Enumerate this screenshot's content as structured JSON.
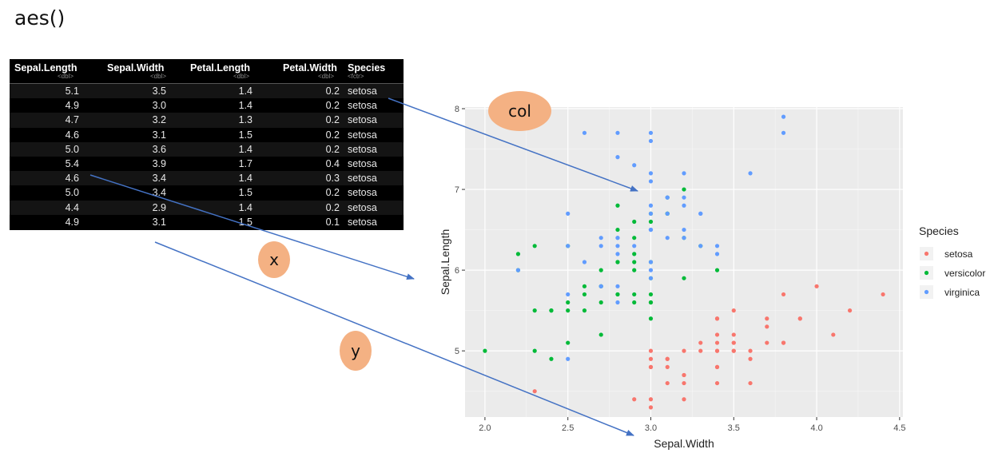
{
  "title": "aes()",
  "table": {
    "columns": [
      {
        "name": "Sepal.Length",
        "type": "<dbl>"
      },
      {
        "name": "Sepal.Width",
        "type": "<dbl>"
      },
      {
        "name": "Petal.Length",
        "type": "<dbl>"
      },
      {
        "name": "Petal.Width",
        "type": "<dbl>"
      },
      {
        "name": "Species",
        "type": "<fctr>"
      }
    ],
    "rows": [
      [
        "5.1",
        "3.5",
        "1.4",
        "0.2",
        "setosa"
      ],
      [
        "4.9",
        "3.0",
        "1.4",
        "0.2",
        "setosa"
      ],
      [
        "4.7",
        "3.2",
        "1.3",
        "0.2",
        "setosa"
      ],
      [
        "4.6",
        "3.1",
        "1.5",
        "0.2",
        "setosa"
      ],
      [
        "5.0",
        "3.6",
        "1.4",
        "0.2",
        "setosa"
      ],
      [
        "5.4",
        "3.9",
        "1.7",
        "0.4",
        "setosa"
      ],
      [
        "4.6",
        "3.4",
        "1.4",
        "0.3",
        "setosa"
      ],
      [
        "5.0",
        "3.4",
        "1.5",
        "0.2",
        "setosa"
      ],
      [
        "4.4",
        "2.9",
        "1.4",
        "0.2",
        "setosa"
      ],
      [
        "4.9",
        "3.1",
        "1.5",
        "0.1",
        "setosa"
      ]
    ]
  },
  "bubbles": {
    "col": "col",
    "x": "x",
    "y": "y"
  },
  "colors": {
    "setosa": "#f8766d",
    "versicolor": "#00ba38",
    "virginica": "#619cff",
    "arrow": "#4472c4",
    "bubble": "#f4b183",
    "panel": "#ebebeb"
  },
  "chart_data": {
    "type": "scatter",
    "xlabel": "Sepal.Width",
    "ylabel": "Sepal.Length",
    "xlim": [
      1.88,
      4.52
    ],
    "ylim": [
      4.18,
      8.02
    ],
    "xticks": [
      2.0,
      2.5,
      3.0,
      3.5,
      4.0,
      4.5
    ],
    "xtick_labels": [
      "2.0",
      "2.5",
      "3.0",
      "3.5",
      "4.0",
      "4.5"
    ],
    "yticks": [
      5,
      6,
      7,
      8
    ],
    "ytick_labels": [
      "5",
      "6",
      "7",
      "8"
    ],
    "grid": true,
    "legend": {
      "title": "Species",
      "position": "right"
    },
    "series": [
      {
        "name": "setosa",
        "points": [
          [
            3.5,
            5.1
          ],
          [
            3.0,
            4.9
          ],
          [
            3.2,
            4.7
          ],
          [
            3.1,
            4.6
          ],
          [
            3.6,
            5.0
          ],
          [
            3.9,
            5.4
          ],
          [
            3.4,
            4.6
          ],
          [
            3.4,
            5.0
          ],
          [
            2.9,
            4.4
          ],
          [
            3.1,
            4.9
          ],
          [
            3.7,
            5.4
          ],
          [
            3.4,
            4.8
          ],
          [
            3.0,
            4.8
          ],
          [
            3.0,
            4.3
          ],
          [
            4.0,
            5.8
          ],
          [
            4.4,
            5.7
          ],
          [
            3.9,
            5.4
          ],
          [
            3.5,
            5.1
          ],
          [
            3.8,
            5.7
          ],
          [
            3.8,
            5.1
          ],
          [
            3.4,
            5.4
          ],
          [
            3.7,
            5.1
          ],
          [
            3.6,
            4.6
          ],
          [
            3.3,
            5.1
          ],
          [
            3.4,
            4.8
          ],
          [
            3.0,
            5.0
          ],
          [
            3.4,
            5.0
          ],
          [
            3.5,
            5.2
          ],
          [
            3.4,
            5.2
          ],
          [
            3.2,
            4.7
          ],
          [
            3.1,
            4.8
          ],
          [
            3.4,
            5.4
          ],
          [
            4.1,
            5.2
          ],
          [
            4.2,
            5.5
          ],
          [
            3.1,
            4.9
          ],
          [
            3.2,
            5.0
          ],
          [
            3.5,
            5.5
          ],
          [
            3.6,
            4.9
          ],
          [
            3.0,
            4.4
          ],
          [
            3.4,
            5.1
          ],
          [
            3.5,
            5.0
          ],
          [
            2.3,
            4.5
          ],
          [
            3.2,
            4.4
          ],
          [
            3.5,
            5.0
          ],
          [
            3.8,
            5.1
          ],
          [
            3.0,
            4.8
          ],
          [
            3.8,
            5.1
          ],
          [
            3.2,
            4.6
          ],
          [
            3.7,
            5.3
          ],
          [
            3.3,
            5.0
          ]
        ]
      },
      {
        "name": "versicolor",
        "points": [
          [
            3.2,
            7.0
          ],
          [
            3.2,
            6.4
          ],
          [
            3.1,
            6.9
          ],
          [
            2.3,
            5.5
          ],
          [
            2.8,
            6.5
          ],
          [
            2.8,
            5.7
          ],
          [
            3.3,
            6.3
          ],
          [
            2.4,
            4.9
          ],
          [
            2.9,
            6.6
          ],
          [
            2.7,
            5.2
          ],
          [
            2.0,
            5.0
          ],
          [
            3.0,
            5.9
          ],
          [
            2.2,
            6.0
          ],
          [
            2.9,
            6.1
          ],
          [
            2.9,
            5.6
          ],
          [
            3.1,
            6.7
          ],
          [
            3.0,
            5.6
          ],
          [
            2.7,
            5.8
          ],
          [
            2.2,
            6.2
          ],
          [
            2.5,
            5.6
          ],
          [
            3.2,
            5.9
          ],
          [
            2.8,
            6.1
          ],
          [
            2.5,
            6.3
          ],
          [
            2.8,
            6.1
          ],
          [
            2.9,
            6.4
          ],
          [
            3.0,
            6.6
          ],
          [
            2.8,
            6.8
          ],
          [
            3.0,
            6.7
          ],
          [
            2.9,
            6.0
          ],
          [
            2.6,
            5.7
          ],
          [
            2.4,
            5.5
          ],
          [
            2.4,
            5.5
          ],
          [
            2.7,
            5.8
          ],
          [
            2.7,
            6.0
          ],
          [
            3.0,
            5.4
          ],
          [
            3.4,
            6.0
          ],
          [
            3.1,
            6.7
          ],
          [
            2.3,
            6.3
          ],
          [
            3.0,
            5.6
          ],
          [
            2.5,
            5.5
          ],
          [
            2.6,
            5.5
          ],
          [
            3.0,
            6.1
          ],
          [
            2.6,
            5.8
          ],
          [
            2.3,
            5.0
          ],
          [
            2.7,
            5.6
          ],
          [
            3.0,
            5.7
          ],
          [
            2.9,
            5.7
          ],
          [
            2.9,
            6.2
          ],
          [
            2.5,
            5.1
          ],
          [
            2.8,
            5.7
          ]
        ]
      },
      {
        "name": "virginica",
        "points": [
          [
            3.3,
            6.3
          ],
          [
            2.7,
            5.8
          ],
          [
            3.0,
            7.1
          ],
          [
            2.9,
            6.3
          ],
          [
            3.0,
            6.5
          ],
          [
            3.0,
            7.6
          ],
          [
            2.5,
            4.9
          ],
          [
            2.9,
            7.3
          ],
          [
            2.5,
            6.7
          ],
          [
            3.6,
            7.2
          ],
          [
            3.2,
            6.5
          ],
          [
            2.7,
            6.4
          ],
          [
            3.0,
            6.8
          ],
          [
            2.5,
            5.7
          ],
          [
            2.8,
            5.8
          ],
          [
            3.2,
            6.4
          ],
          [
            3.0,
            6.5
          ],
          [
            3.8,
            7.7
          ],
          [
            2.6,
            7.7
          ],
          [
            2.2,
            6.0
          ],
          [
            3.2,
            6.9
          ],
          [
            2.8,
            5.6
          ],
          [
            2.8,
            7.7
          ],
          [
            2.7,
            6.3
          ],
          [
            3.3,
            6.7
          ],
          [
            3.2,
            7.2
          ],
          [
            2.8,
            6.2
          ],
          [
            3.0,
            6.1
          ],
          [
            2.8,
            6.4
          ],
          [
            3.0,
            7.2
          ],
          [
            2.8,
            7.4
          ],
          [
            3.8,
            7.9
          ],
          [
            2.8,
            6.4
          ],
          [
            2.8,
            6.3
          ],
          [
            2.6,
            6.1
          ],
          [
            3.0,
            7.7
          ],
          [
            3.4,
            6.3
          ],
          [
            3.1,
            6.4
          ],
          [
            3.0,
            6.0
          ],
          [
            3.1,
            6.9
          ],
          [
            3.1,
            6.7
          ],
          [
            3.1,
            6.9
          ],
          [
            2.7,
            5.8
          ],
          [
            3.2,
            6.8
          ],
          [
            3.3,
            6.7
          ],
          [
            3.0,
            6.7
          ],
          [
            2.5,
            6.3
          ],
          [
            3.0,
            6.5
          ],
          [
            3.4,
            6.2
          ],
          [
            3.0,
            5.9
          ]
        ]
      }
    ]
  }
}
